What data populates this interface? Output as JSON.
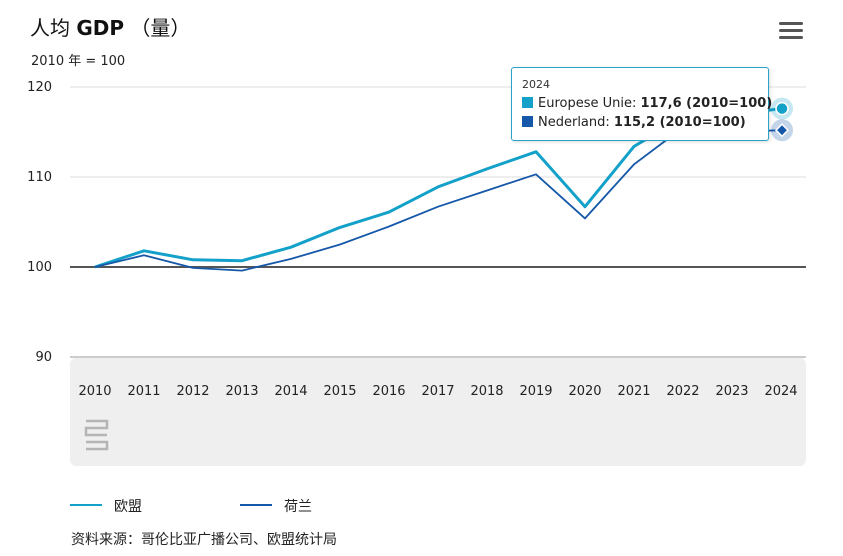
{
  "header": {
    "title_part1": "人均",
    "title_bold": "GDP",
    "title_part2": "（量）",
    "subtitle": "2010 年 = 100"
  },
  "icons": {
    "menu": "hamburger-menu-icon",
    "logo": "cbs-logo-icon"
  },
  "colors": {
    "eu": "#13a1c9",
    "nl": "#1557a8",
    "baseline": "#555555",
    "xaxis_bg": "#efefef"
  },
  "tooltip": {
    "year": "2024",
    "eu_label": "Europese Unie:",
    "eu_value": "117,6 (2010=100)",
    "nl_label": "Nederland:",
    "nl_value": "115,2 (2010=100)"
  },
  "legend": {
    "eu": "欧盟",
    "nl": "荷兰"
  },
  "source": "资料来源：哥伦比亚广播公司、欧盟统计局",
  "chart_data": {
    "type": "line",
    "categories": [
      "2010",
      "2011",
      "2012",
      "2013",
      "2014",
      "2015",
      "2016",
      "2017",
      "2018",
      "2019",
      "2020",
      "2021",
      "2022",
      "2023",
      "2024"
    ],
    "series": [
      {
        "name": "欧盟",
        "values": [
          100,
          101.8,
          100.8,
          100.7,
          102.2,
          104.4,
          106.1,
          108.9,
          110.9,
          112.8,
          106.7,
          113.4,
          116.6,
          116.9,
          117.6
        ]
      },
      {
        "name": "荷兰",
        "values": [
          100,
          101.3,
          99.9,
          99.6,
          100.9,
          102.5,
          104.5,
          106.7,
          108.5,
          110.3,
          105.4,
          111.4,
          115.5,
          115.0,
          115.2
        ]
      }
    ],
    "y_ticks": [
      90,
      100,
      110,
      120
    ],
    "ylim": [
      90,
      120
    ],
    "baseline": 100,
    "grid": true,
    "legend_position": "bottom-left"
  }
}
